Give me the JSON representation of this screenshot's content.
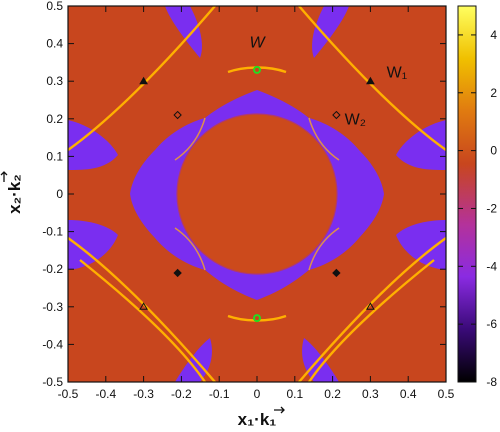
{
  "chart_data": {
    "type": "heatmap",
    "title": "",
    "xlabel": "x₁·k₁",
    "ylabel": "x₂·k₂",
    "xlim": [
      -0.5,
      0.5
    ],
    "ylim": [
      -0.5,
      0.5
    ],
    "x_ticks": [
      -0.5,
      -0.4,
      -0.3,
      -0.2,
      -0.1,
      0,
      0.1,
      0.2,
      0.3,
      0.4,
      0.5
    ],
    "y_ticks": [
      -0.5,
      -0.4,
      -0.3,
      -0.2,
      -0.1,
      0,
      0.1,
      0.2,
      0.3,
      0.4,
      0.5
    ],
    "x_tick_labels": [
      "-0.5",
      "-0.4",
      "-0.3",
      "-0.2",
      "-0.1",
      "0",
      "0.1",
      "0.2",
      "0.3",
      "0.4",
      "0.5"
    ],
    "y_tick_labels": [
      "-0.5",
      "-0.4",
      "-0.3",
      "-0.2",
      "-0.1",
      "0",
      "0.1",
      "0.2",
      "0.3",
      "0.4",
      "0.5"
    ],
    "colorbar": {
      "range": [
        -8,
        5
      ],
      "ticks": [
        -8,
        -6,
        -4,
        -2,
        0,
        2,
        4
      ],
      "tick_labels": [
        "-8",
        "-6",
        "-4",
        "-2",
        "0",
        "2",
        "4"
      ],
      "colormap": [
        "#000000",
        "#3a0a78",
        "#8a2be2",
        "#b4329a",
        "#c8461e",
        "#e07a10",
        "#f0c000",
        "#ffff60"
      ]
    },
    "background_level": -0.5,
    "grid": false,
    "annotations": [
      {
        "text": "W",
        "x": 0.0,
        "y": 0.39,
        "style": "italic"
      },
      {
        "text": "W₁",
        "x": 0.37,
        "y": 0.31
      },
      {
        "text": "W₂",
        "x": 0.26,
        "y": 0.185
      }
    ],
    "markers": [
      {
        "x": 0.0,
        "y": 0.33,
        "symbol": "circle",
        "color": "#22dd22"
      },
      {
        "x": 0.0,
        "y": -0.33,
        "symbol": "circle",
        "color": "#22dd22"
      },
      {
        "x": -0.3,
        "y": 0.3,
        "symbol": "triangle-filled",
        "color": "#111111"
      },
      {
        "x": 0.3,
        "y": 0.3,
        "symbol": "triangle-filled",
        "color": "#111111"
      },
      {
        "x": -0.3,
        "y": -0.3,
        "symbol": "triangle-open",
        "color": "#111111"
      },
      {
        "x": 0.3,
        "y": -0.3,
        "symbol": "triangle-open",
        "color": "#111111"
      },
      {
        "x": -0.21,
        "y": 0.21,
        "symbol": "diamond-open",
        "color": "#111111"
      },
      {
        "x": 0.21,
        "y": 0.21,
        "symbol": "diamond-open",
        "color": "#111111"
      },
      {
        "x": -0.21,
        "y": -0.21,
        "symbol": "diamond-filled",
        "color": "#111111"
      },
      {
        "x": 0.21,
        "y": -0.21,
        "symbol": "diamond-filled",
        "color": "#111111"
      }
    ]
  }
}
